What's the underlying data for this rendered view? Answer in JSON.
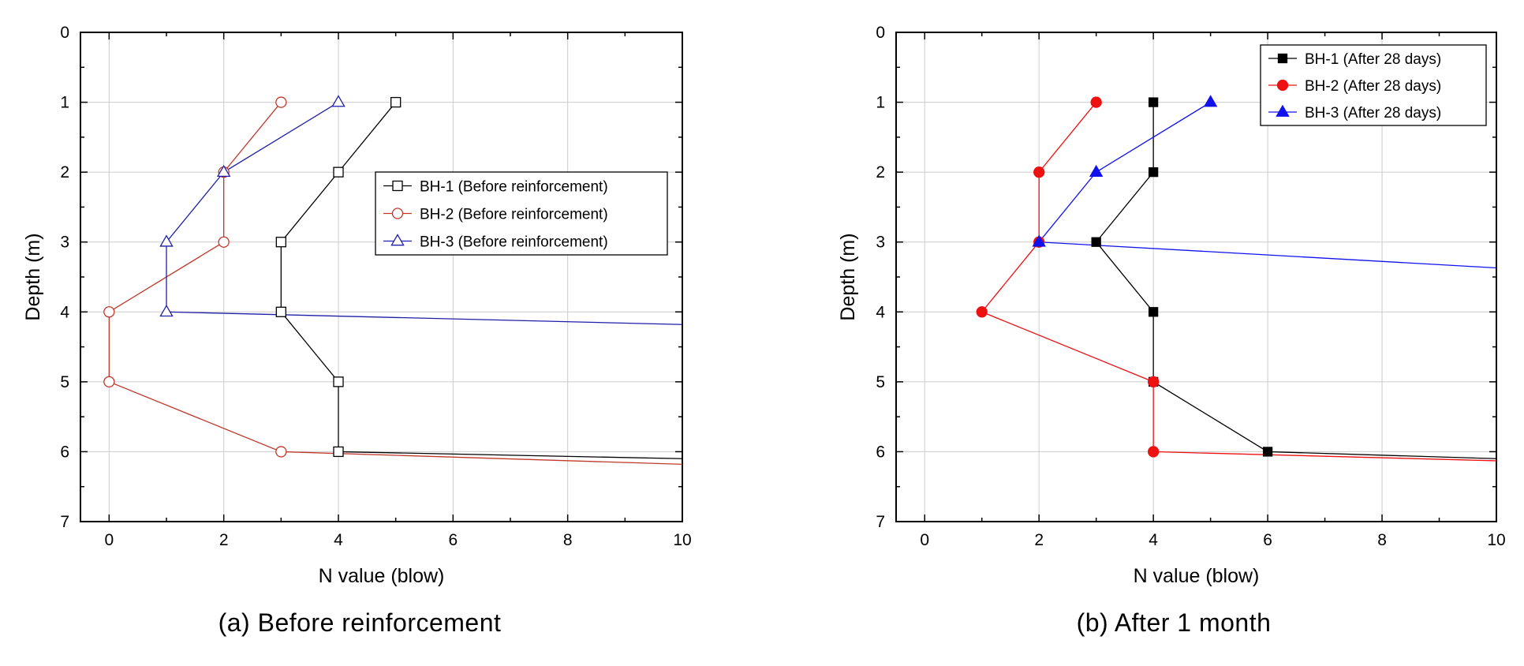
{
  "chart_data": [
    {
      "type": "line",
      "caption": "(a) Before reinforcement",
      "xlabel": "N value (blow)",
      "ylabel": "Depth (m)",
      "xlim": [
        -0.5,
        10
      ],
      "ylim": [
        0,
        7
      ],
      "y_inverted": true,
      "x_ticks": [
        0,
        2,
        4,
        6,
        8,
        10
      ],
      "y_ticks": [
        0,
        1,
        2,
        3,
        4,
        5,
        6,
        7
      ],
      "grid": true,
      "legend_position": "center-right",
      "series": [
        {
          "name": "BH-1 (Before reinforcement)",
          "color": "#000000",
          "marker": "square-open",
          "x": [
            5,
            4,
            3,
            3,
            4,
            4,
            10
          ],
          "y": [
            1,
            2,
            3,
            4,
            5,
            6,
            6.1
          ]
        },
        {
          "name": "BH-2 (Before reinforcement)",
          "color": "#c0392b",
          "marker": "circle-open",
          "x": [
            3,
            2,
            2,
            0,
            0,
            3,
            10
          ],
          "y": [
            1,
            2,
            3,
            4,
            5,
            6,
            6.18
          ]
        },
        {
          "name": "BH-3 (Before reinforcement)",
          "color": "#1f1fa8",
          "marker": "triangle-open",
          "x": [
            4,
            2,
            1,
            1,
            10
          ],
          "y": [
            1,
            2,
            3,
            4,
            4.18
          ]
        }
      ]
    },
    {
      "type": "line",
      "caption": "(b) After 1 month",
      "xlabel": "N value (blow)",
      "ylabel": "Depth (m)",
      "xlim": [
        -0.5,
        10
      ],
      "ylim": [
        0,
        7
      ],
      "y_inverted": true,
      "x_ticks": [
        0,
        2,
        4,
        6,
        8,
        10
      ],
      "y_ticks": [
        0,
        1,
        2,
        3,
        4,
        5,
        6,
        7
      ],
      "grid": true,
      "legend_position": "top-right",
      "series": [
        {
          "name": "BH-1 (After 28 days)",
          "color": "#000000",
          "marker": "square-filled",
          "x": [
            4,
            4,
            3,
            4,
            4,
            6,
            10
          ],
          "y": [
            1,
            2,
            3,
            4,
            5,
            6,
            6.1
          ]
        },
        {
          "name": "BH-2 (After 28 days)",
          "color": "#ee1111",
          "marker": "circle-filled",
          "x": [
            3,
            2,
            2,
            1,
            4,
            4,
            10
          ],
          "y": [
            1,
            2,
            3,
            4,
            5,
            6,
            6.13
          ]
        },
        {
          "name": "BH-3 (After 28 days)",
          "color": "#1111ee",
          "marker": "triangle-filled",
          "x": [
            5,
            3,
            2,
            10
          ],
          "y": [
            1,
            2,
            3,
            3.37
          ]
        }
      ]
    }
  ]
}
